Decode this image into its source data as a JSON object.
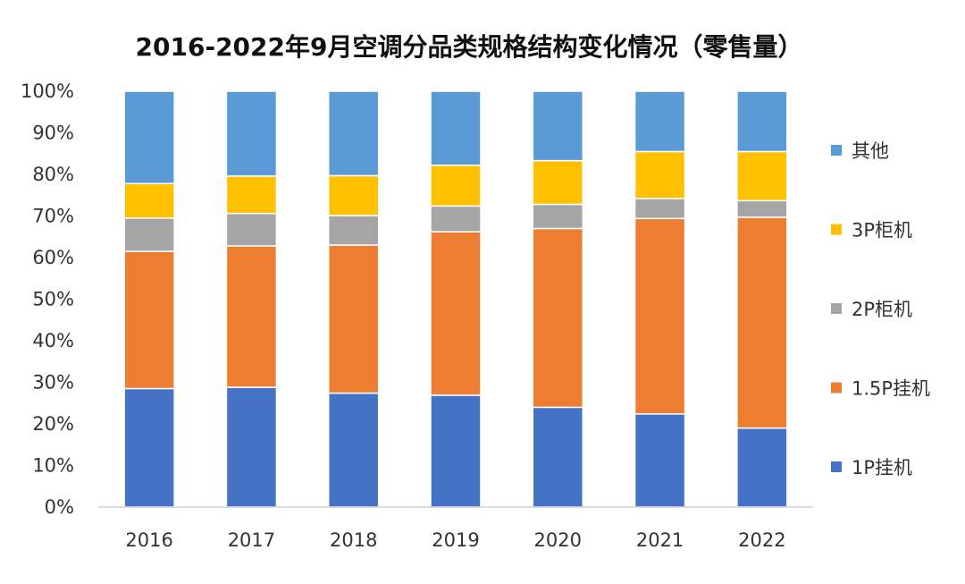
{
  "chart_data": {
    "type": "bar",
    "stacked": true,
    "title": "2016-2022年9月空调分品类规格结构变化情况（零售量）",
    "categories": [
      "2016",
      "2017",
      "2018",
      "2019",
      "2020",
      "2021",
      "2022"
    ],
    "y_ticks": [
      "0%",
      "10%",
      "20%",
      "30%",
      "40%",
      "50%",
      "60%",
      "70%",
      "80%",
      "90%",
      "100%"
    ],
    "ylim": [
      0,
      100
    ],
    "grid": false,
    "legend_position": "right",
    "series": [
      {
        "name": "1P挂机",
        "color": "#4472C4",
        "values": [
          28.5,
          28.8,
          27.4,
          26.9,
          24.0,
          22.4,
          19.0
        ]
      },
      {
        "name": "1.5P挂机",
        "color": "#ED7D31",
        "values": [
          33.0,
          34.0,
          35.6,
          39.3,
          43.0,
          47.0,
          50.7
        ]
      },
      {
        "name": "2P柜机",
        "color": "#A5A5A5",
        "values": [
          8.0,
          7.8,
          7.1,
          6.2,
          5.8,
          4.8,
          4.0
        ]
      },
      {
        "name": "3P柜机",
        "color": "#FFC000",
        "values": [
          8.3,
          9.0,
          9.6,
          9.8,
          10.5,
          11.3,
          11.8
        ]
      },
      {
        "name": "其他",
        "color": "#5B9BD5",
        "values": [
          22.2,
          20.4,
          20.3,
          17.8,
          16.7,
          14.5,
          14.5
        ]
      }
    ]
  }
}
